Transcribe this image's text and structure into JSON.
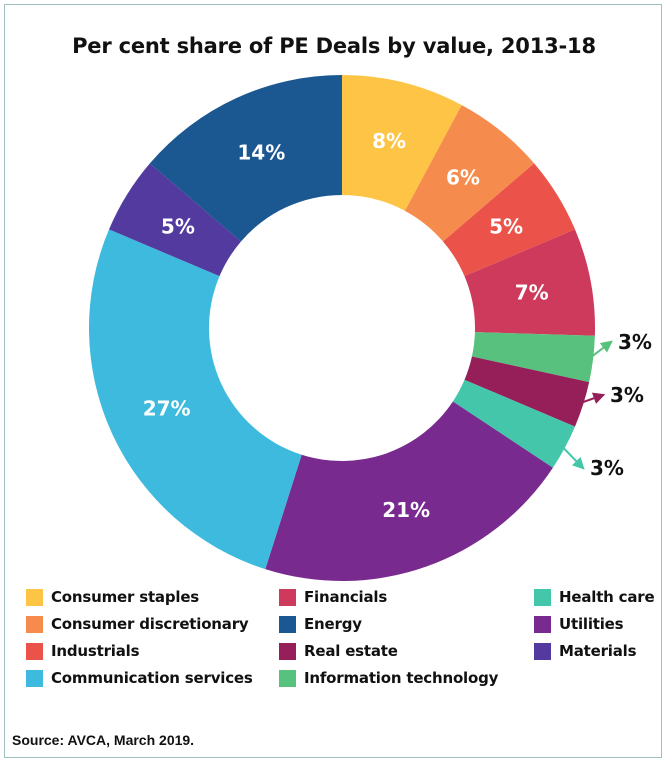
{
  "chart_data": {
    "type": "pie",
    "variant": "donut",
    "title": "Per cent share of PE Deals by value, 2013-18",
    "slices": [
      {
        "label": "Consumer staples",
        "value": 8,
        "display": "8%",
        "color": "#FEC445",
        "label_position": "inside"
      },
      {
        "label": "Consumer discretionary",
        "value": 6,
        "display": "6%",
        "color": "#F58B4C",
        "label_position": "inside"
      },
      {
        "label": "Industrials",
        "value": 5,
        "display": "5%",
        "color": "#EA524A",
        "label_position": "inside"
      },
      {
        "label": "Financials",
        "value": 7,
        "display": "7%",
        "color": "#CE3A5B",
        "label_position": "inside"
      },
      {
        "label": "Information technology",
        "value": 3,
        "display": "3%",
        "color": "#57C17D",
        "label_position": "outside"
      },
      {
        "label": "Real estate",
        "value": 3,
        "display": "3%",
        "color": "#961F5A",
        "label_position": "outside"
      },
      {
        "label": "Health care",
        "value": 3,
        "display": "3%",
        "color": "#44C6AB",
        "label_position": "outside"
      },
      {
        "label": "Utilities",
        "value": 21,
        "display": "21%",
        "color": "#792A8F",
        "label_position": "inside"
      },
      {
        "label": "Communication services",
        "value": 27,
        "display": "27%",
        "color": "#3DBADD",
        "label_position": "inside"
      },
      {
        "label": "Materials",
        "value": 5,
        "display": "5%",
        "color": "#523A9F",
        "label_position": "inside"
      },
      {
        "label": "Energy",
        "value": 14,
        "display": "14%",
        "color": "#1B5791",
        "label_position": "inside"
      }
    ],
    "legend": [
      {
        "label": "Consumer staples",
        "color": "#FEC445"
      },
      {
        "label": "Financials",
        "color": "#CE3A5B"
      },
      {
        "label": "Health care",
        "color": "#44C6AB"
      },
      {
        "label": "Consumer discretionary",
        "color": "#F58B4C"
      },
      {
        "label": "Energy",
        "color": "#1B5791"
      },
      {
        "label": "Utilities",
        "color": "#792A8F"
      },
      {
        "label": "Industrials",
        "color": "#EA524A"
      },
      {
        "label": "Real estate",
        "color": "#961F5A"
      },
      {
        "label": "Materials",
        "color": "#523A9F"
      },
      {
        "label": "Communication services",
        "color": "#3DBADD"
      },
      {
        "label": "Information technology",
        "color": "#57C17D"
      }
    ],
    "legend_placement": "bottom",
    "source": "Source: AVCA, March 2019."
  }
}
